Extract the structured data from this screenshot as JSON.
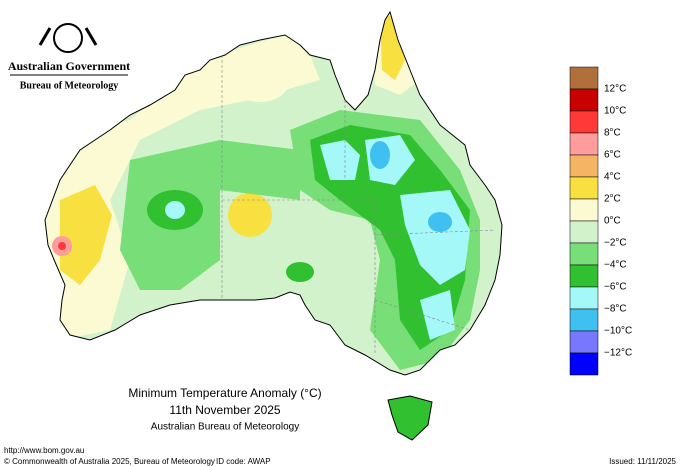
{
  "logo": {
    "line1": "Australian Government",
    "line2": "Bureau of Meteorology"
  },
  "legend": {
    "colors": [
      "#b0703c",
      "#c80000",
      "#ff3838",
      "#ff9c9c",
      "#f5b464",
      "#f8e040",
      "#fbfad2",
      "#d2f2cc",
      "#78de78",
      "#30c030",
      "#a4f8f8",
      "#40c0f0",
      "#7878ff",
      "#0000ff"
    ],
    "labels": [
      "12°C",
      "10°C",
      "8°C",
      "6°C",
      "4°C",
      "2°C",
      "0°C",
      "−2°C",
      "−4°C",
      "−6°C",
      "−8°C",
      "−10°C",
      "−12°C"
    ]
  },
  "caption": {
    "title": "Minimum Temperature Anomaly (°C)",
    "date": "11th November 2025",
    "source": "Australian Bureau of Meteorology"
  },
  "footer": {
    "url": "http://www.bom.gov.au",
    "copyright": "© Commonwealth of Australia 2025, Bureau of Meteorology",
    "id": "ID code: AWAP",
    "issued": "Issued: 11/11/2025"
  }
}
